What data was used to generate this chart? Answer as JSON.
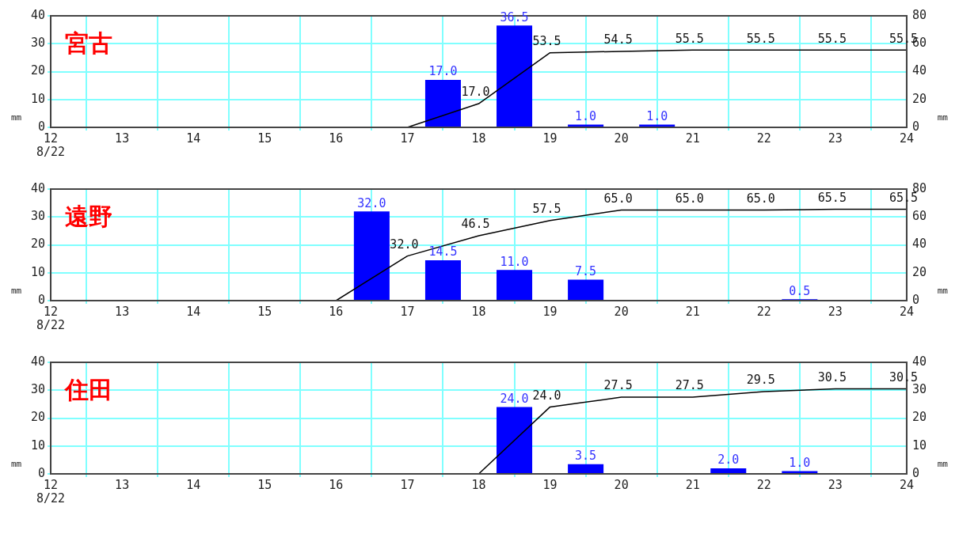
{
  "chart_data": [
    {
      "type": "bar",
      "title": "宮古",
      "ylabel": "mm",
      "y2label": "mm",
      "grid": true,
      "annotations": [
        "8/22"
      ],
      "xlim": [
        12,
        24
      ],
      "xticks": [
        12,
        13,
        14,
        15,
        16,
        17,
        18,
        19,
        20,
        21,
        22,
        23,
        24
      ],
      "ylim": [
        0,
        40
      ],
      "yticks": [
        0,
        10,
        20,
        30,
        40
      ],
      "y2lim": [
        0,
        80
      ],
      "y2ticks": [
        0,
        20,
        40,
        60,
        80
      ],
      "series": [
        {
          "color": "#0000ff",
          "x": [
            17.5,
            18.5,
            19.5,
            20.5
          ],
          "values": [
            17.0,
            36.5,
            1.0,
            1.0
          ],
          "value_labels": [
            "17.0",
            "36.5",
            "1.0",
            "1.0"
          ]
        },
        {
          "type": "line",
          "axis": "y2",
          "color": "#000000",
          "x": [
            17,
            18,
            19,
            20,
            21,
            22,
            23,
            24
          ],
          "values": [
            0,
            17.0,
            53.5,
            54.5,
            55.5,
            55.5,
            55.5,
            55.5
          ],
          "value_labels": [
            null,
            "17.0",
            "53.5",
            "54.5",
            "55.5",
            "55.5",
            "55.5",
            "55.5"
          ]
        }
      ]
    },
    {
      "type": "bar",
      "title": "遠野",
      "ylabel": "mm",
      "y2label": "mm",
      "grid": true,
      "annotations": [
        "8/22"
      ],
      "xlim": [
        12,
        24
      ],
      "xticks": [
        12,
        13,
        14,
        15,
        16,
        17,
        18,
        19,
        20,
        21,
        22,
        23,
        24
      ],
      "ylim": [
        0,
        40
      ],
      "yticks": [
        0,
        10,
        20,
        30,
        40
      ],
      "y2lim": [
        0,
        80
      ],
      "y2ticks": [
        0,
        20,
        40,
        60,
        80
      ],
      "series": [
        {
          "color": "#0000ff",
          "x": [
            16.5,
            17.5,
            18.5,
            19.5,
            22.5
          ],
          "values": [
            32.0,
            14.5,
            11.0,
            7.5,
            0.5
          ],
          "value_labels": [
            "32.0",
            "14.5",
            "11.0",
            "7.5",
            "0.5"
          ]
        },
        {
          "type": "line",
          "axis": "y2",
          "color": "#000000",
          "x": [
            16,
            17,
            18,
            19,
            20,
            21,
            22,
            23,
            24
          ],
          "values": [
            0,
            32.0,
            46.5,
            57.5,
            65.0,
            65.0,
            65.0,
            65.5,
            65.5
          ],
          "value_labels": [
            null,
            "32.0",
            "46.5",
            "57.5",
            "65.0",
            "65.0",
            "65.0",
            "65.5",
            "65.5"
          ]
        }
      ]
    },
    {
      "type": "bar",
      "title": "住田",
      "ylabel": "mm",
      "y2label": "mm",
      "grid": true,
      "annotations": [
        "8/22"
      ],
      "xlim": [
        12,
        24
      ],
      "xticks": [
        12,
        13,
        14,
        15,
        16,
        17,
        18,
        19,
        20,
        21,
        22,
        23,
        24
      ],
      "ylim": [
        0,
        40
      ],
      "yticks": [
        0,
        10,
        20,
        30,
        40
      ],
      "y2lim": [
        0,
        40
      ],
      "y2ticks": [
        0,
        10,
        20,
        30,
        40
      ],
      "series": [
        {
          "color": "#0000ff",
          "x": [
            18.5,
            19.5,
            21.5,
            22.5
          ],
          "values": [
            24.0,
            3.5,
            2.0,
            1.0
          ],
          "value_labels": [
            "24.0",
            "3.5",
            "2.0",
            "1.0"
          ]
        },
        {
          "type": "line",
          "axis": "y2",
          "color": "#000000",
          "x": [
            18,
            19,
            20,
            21,
            22,
            23,
            24
          ],
          "values": [
            0,
            24.0,
            27.5,
            27.5,
            29.5,
            30.5,
            30.5
          ],
          "value_labels": [
            null,
            "24.0",
            "27.5",
            "27.5",
            "29.5",
            "30.5",
            "30.5"
          ]
        }
      ]
    }
  ]
}
